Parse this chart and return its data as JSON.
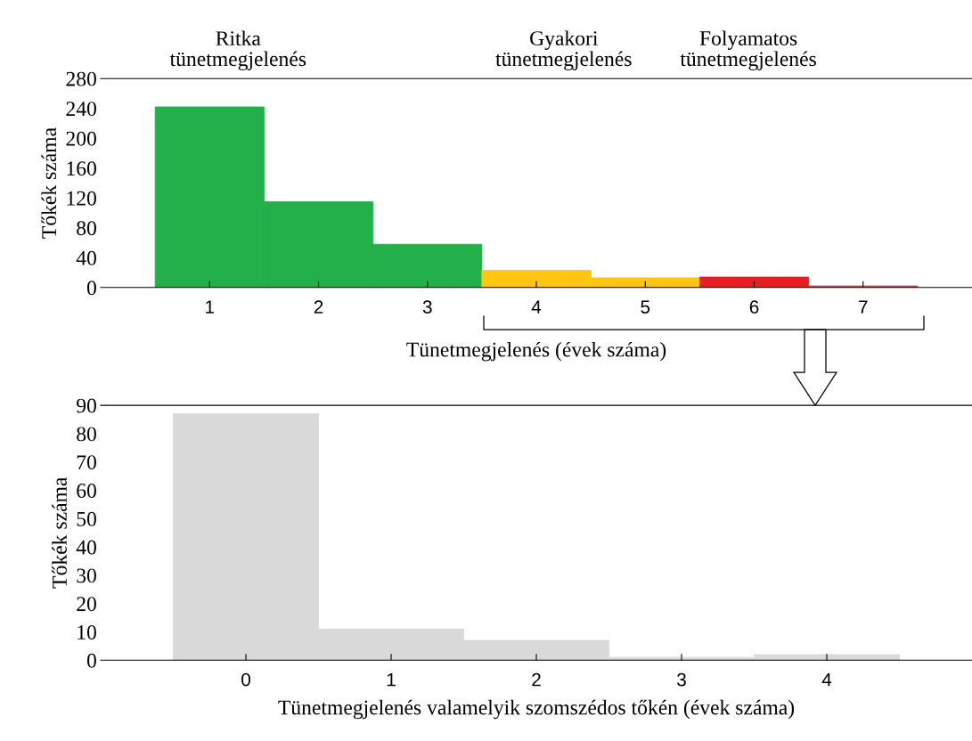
{
  "chart_data": [
    {
      "type": "histogram",
      "bins": [
        0.5,
        1.5,
        2.5,
        3.5,
        4.5,
        5.5,
        6.5,
        7.5
      ],
      "values": [
        242,
        115,
        58,
        23,
        13,
        14,
        2
      ],
      "colors": [
        "#23b04b",
        "#23b04b",
        "#23b04b",
        "#ffc513",
        "#ffc513",
        "#ec1c24",
        "#ec1c24"
      ],
      "xlabel": "Tünetmegjelenés (évek száma)",
      "ylabel": "Tőkék száma",
      "xlim": [
        0,
        8
      ],
      "xticks": [
        1,
        2,
        3,
        4,
        5,
        6,
        7
      ],
      "ylim": [
        0,
        280
      ],
      "yticks": [
        0,
        40,
        80,
        120,
        160,
        200,
        240,
        280
      ],
      "grid": false,
      "annotations": [
        "Ritka\ntünetmegjelenés",
        "Gyakori\ntünetmegjelenés",
        "Folyamatos\ntünetmegjelenés"
      ]
    },
    {
      "type": "histogram",
      "bins": [
        -0.5,
        0.5,
        1.5,
        2.5,
        3.5,
        4.5
      ],
      "values": [
        87,
        11,
        7,
        1,
        2
      ],
      "colors": [
        "#d9d9d9",
        "#d9d9d9",
        "#d9d9d9",
        "#d9d9d9",
        "#d9d9d9"
      ],
      "xlabel": "Tünetmegjelenés valamelyik szomszédos tőkén (évek száma)",
      "ylabel": "Tőkék száma",
      "xlim": [
        -1,
        5
      ],
      "xticks": [
        0,
        1,
        2,
        3,
        4
      ],
      "ylim": [
        0,
        90
      ],
      "yticks": [
        0,
        10,
        20,
        30,
        40,
        50,
        60,
        70,
        80,
        90
      ],
      "grid": false
    }
  ]
}
